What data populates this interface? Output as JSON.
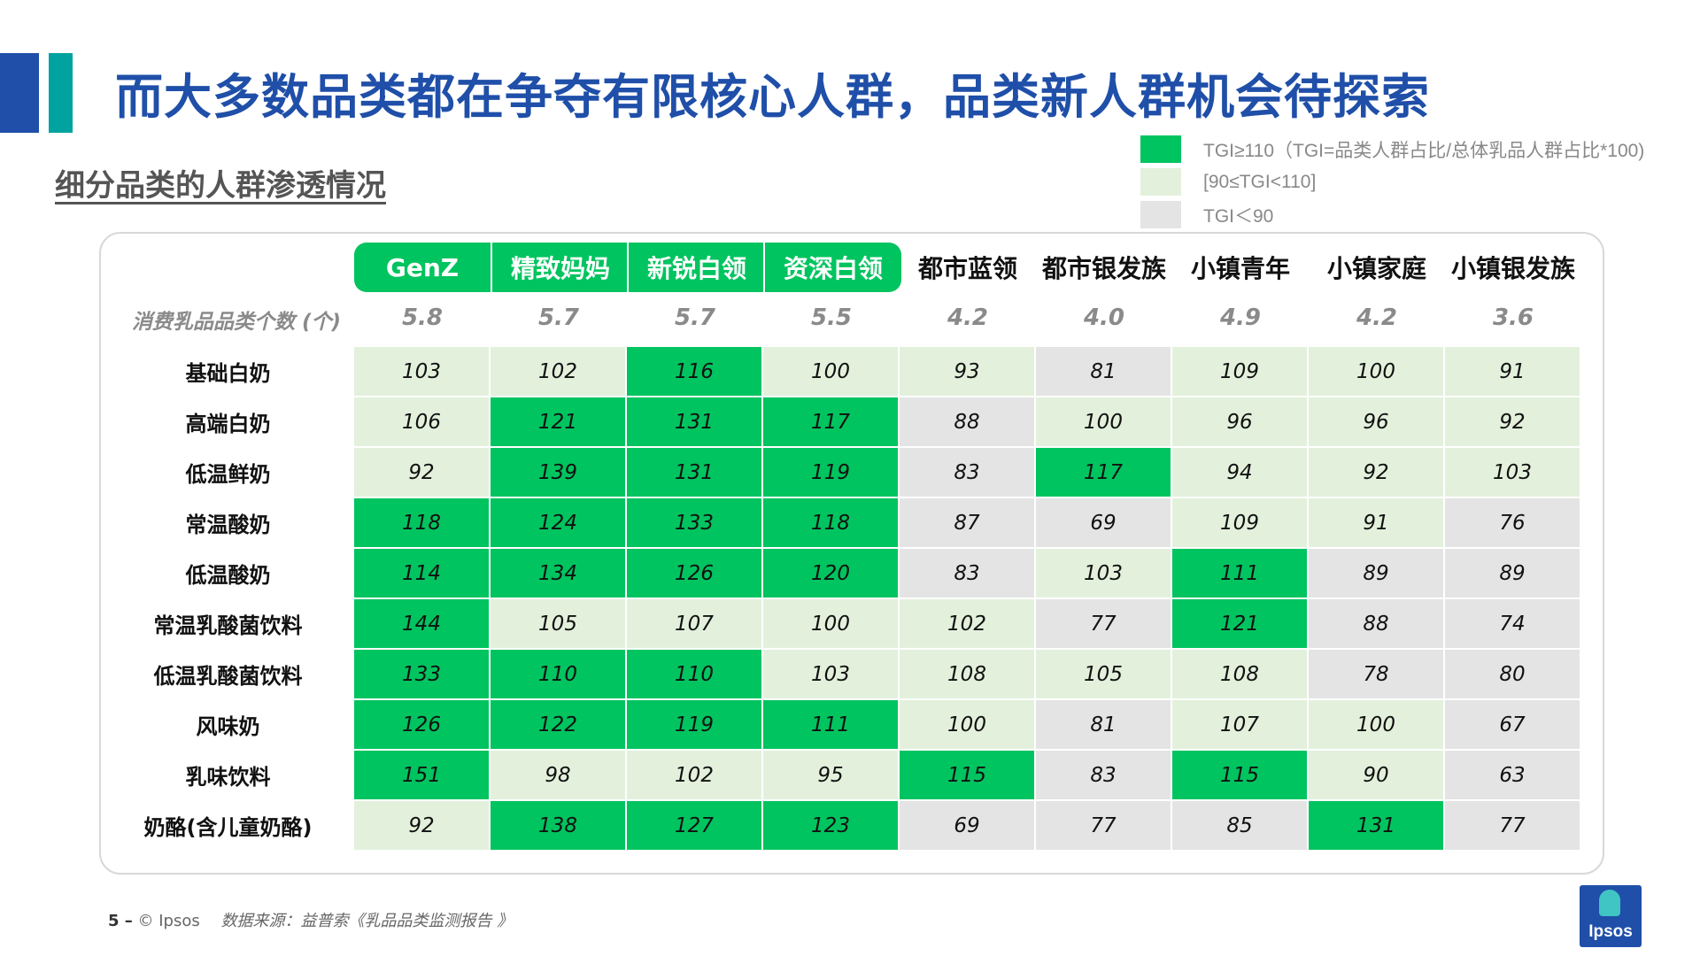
{
  "title": "而大多数品类都在争夺有限核心人群，品类新人群机会待探索",
  "subtitle": "细分品类的人群渗透情况",
  "legend": [
    {
      "label": "TGI≥110（TGI=品类人群占比/总体乳品人群占比*100)",
      "color": "#00c45f"
    },
    {
      "label": "[90≤TGI<110]",
      "color": "#e3f1dc"
    },
    {
      "label": "TGI＜90",
      "color": "#e4e4e4"
    }
  ],
  "colors": {
    "high": "#00c45f",
    "mid": "#e3f1dc",
    "low": "#e4e4e4",
    "brand": "#1f4fa8",
    "accent": "#00a3a0"
  },
  "chart_data": {
    "type": "heatmap",
    "thresholds": {
      "high": 110,
      "low": 90
    },
    "columns": [
      "GenZ",
      "精致妈妈",
      "新锐白领",
      "资深白领",
      "都市蓝领",
      "都市银发族",
      "小镇青年",
      "小镇家庭",
      "小镇银发族"
    ],
    "highlighted_columns": [
      0,
      1,
      2,
      3
    ],
    "count_label": "消费乳品品类个数 (个)",
    "counts": [
      "5.8",
      "5.7",
      "5.7",
      "5.5",
      "4.2",
      "4.0",
      "4.9",
      "4.2",
      "3.6"
    ],
    "rows": [
      "基础白奶",
      "高端白奶",
      "低温鲜奶",
      "常温酸奶",
      "低温酸奶",
      "常温乳酸菌饮料",
      "低温乳酸菌饮料",
      "风味奶",
      "乳味饮料",
      "奶酪(含儿童奶酪)"
    ],
    "values": [
      [
        103,
        102,
        116,
        100,
        93,
        81,
        109,
        100,
        91
      ],
      [
        106,
        121,
        131,
        117,
        88,
        100,
        96,
        96,
        92
      ],
      [
        92,
        139,
        131,
        119,
        83,
        117,
        94,
        92,
        103
      ],
      [
        118,
        124,
        133,
        118,
        87,
        69,
        109,
        91,
        76
      ],
      [
        114,
        134,
        126,
        120,
        83,
        103,
        111,
        89,
        89
      ],
      [
        144,
        105,
        107,
        100,
        102,
        77,
        121,
        88,
        74
      ],
      [
        133,
        110,
        110,
        103,
        108,
        105,
        108,
        78,
        80
      ],
      [
        126,
        122,
        119,
        111,
        100,
        81,
        107,
        100,
        67
      ],
      [
        151,
        98,
        102,
        95,
        115,
        83,
        115,
        90,
        63
      ],
      [
        92,
        138,
        127,
        123,
        69,
        77,
        85,
        131,
        77
      ]
    ]
  },
  "footer": {
    "page": "5 –",
    "copyright": "© Ipsos",
    "source": "数据来源：益普索《乳品品类监测报告 》"
  },
  "logo": {
    "text": "Ipsos"
  }
}
